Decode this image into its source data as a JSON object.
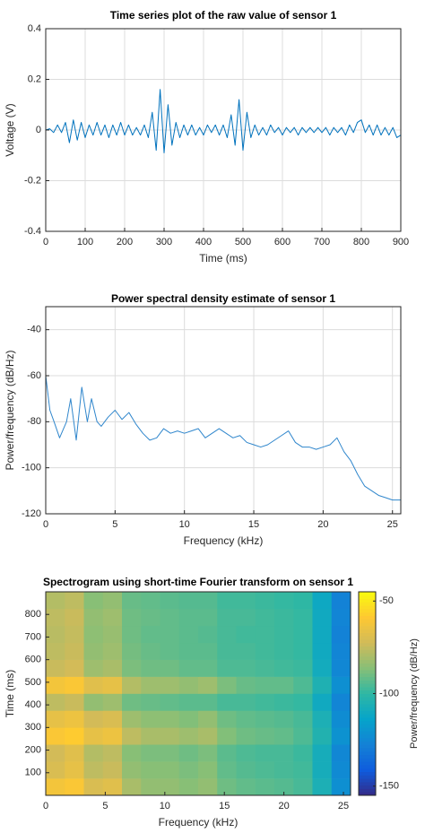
{
  "chart_data": [
    {
      "type": "line",
      "title": "Time series plot of the raw value of sensor 1",
      "xlabel": "Time (ms)",
      "ylabel": "Voltage (V)",
      "xlim": [
        0,
        900
      ],
      "xticks": [
        0,
        100,
        200,
        300,
        400,
        500,
        600,
        700,
        800,
        900
      ],
      "ylim": [
        -0.4,
        0.4
      ],
      "yticks": [
        -0.4,
        -0.2,
        0,
        0.2,
        0.4
      ],
      "grid": true,
      "color": "#0072bd",
      "x": [
        0,
        10,
        20,
        30,
        40,
        50,
        60,
        70,
        80,
        90,
        100,
        110,
        120,
        130,
        140,
        150,
        160,
        170,
        180,
        190,
        200,
        210,
        220,
        230,
        240,
        250,
        260,
        270,
        280,
        290,
        300,
        310,
        320,
        330,
        340,
        350,
        360,
        370,
        380,
        390,
        400,
        410,
        420,
        430,
        440,
        450,
        460,
        470,
        480,
        490,
        500,
        510,
        520,
        530,
        540,
        550,
        560,
        570,
        580,
        590,
        600,
        610,
        620,
        630,
        640,
        650,
        660,
        670,
        680,
        690,
        700,
        710,
        720,
        730,
        740,
        750,
        760,
        770,
        780,
        790,
        800,
        810,
        820,
        830,
        840,
        850,
        860,
        870,
        880,
        890,
        900
      ],
      "values": [
        0,
        0.005,
        -0.01,
        0.02,
        -0.01,
        0.03,
        -0.05,
        0.04,
        -0.04,
        0.03,
        -0.03,
        0.02,
        -0.02,
        0.03,
        -0.02,
        0.02,
        -0.03,
        0.02,
        -0.02,
        0.03,
        -0.02,
        0.02,
        -0.02,
        0.01,
        -0.02,
        0.02,
        -0.03,
        0.07,
        -0.08,
        0.16,
        -0.09,
        0.1,
        -0.06,
        0.03,
        -0.03,
        0.02,
        -0.02,
        0.02,
        -0.02,
        0.01,
        -0.02,
        0.02,
        -0.01,
        0.02,
        -0.02,
        0.02,
        -0.03,
        0.06,
        -0.06,
        0.12,
        -0.08,
        0.07,
        -0.03,
        0.02,
        -0.02,
        0.01,
        -0.02,
        0.02,
        -0.01,
        0.01,
        -0.02,
        0.01,
        -0.01,
        0.01,
        -0.02,
        0.01,
        -0.01,
        0.01,
        -0.01,
        0.01,
        -0.01,
        0.01,
        -0.02,
        0.01,
        -0.01,
        0.01,
        -0.02,
        0.02,
        -0.01,
        0.03,
        0.04,
        -0.01,
        0.02,
        -0.02,
        0.02,
        -0.02,
        0.01,
        -0.02,
        0.01,
        -0.03,
        -0.02
      ]
    },
    {
      "type": "line",
      "title": "Power spectral density estimate of sensor 1",
      "xlabel": "Frequency (kHz)",
      "ylabel": "Power/frequency (dB/Hz)",
      "xlim": [
        0,
        25.6
      ],
      "xticks": [
        0,
        5,
        10,
        15,
        20,
        25
      ],
      "ylim": [
        -120,
        -30
      ],
      "yticks": [
        -120,
        -100,
        -80,
        -60,
        -40
      ],
      "grid": true,
      "color": "#2f86cc",
      "x": [
        0,
        0.3,
        0.6,
        1,
        1.5,
        1.8,
        2.2,
        2.6,
        3,
        3.3,
        3.7,
        4,
        4.5,
        5,
        5.5,
        6,
        6.5,
        7,
        7.5,
        8,
        8.5,
        9,
        9.5,
        10,
        10.5,
        11,
        11.5,
        12,
        12.5,
        13,
        13.5,
        14,
        14.5,
        15,
        15.5,
        16,
        16.5,
        17,
        17.5,
        18,
        18.5,
        19,
        19.5,
        20,
        20.5,
        21,
        21.5,
        22,
        22.5,
        23,
        23.5,
        24,
        24.5,
        25,
        25.6
      ],
      "values": [
        -60,
        -75,
        -80,
        -87,
        -80,
        -70,
        -88,
        -65,
        -80,
        -70,
        -80,
        -82,
        -78,
        -75,
        -79,
        -76,
        -81,
        -85,
        -88,
        -87,
        -83,
        -85,
        -84,
        -85,
        -84,
        -83,
        -87,
        -85,
        -83,
        -85,
        -87,
        -86,
        -89,
        -90,
        -91,
        -90,
        -88,
        -86,
        -84,
        -89,
        -91,
        -91,
        -92,
        -91,
        -90,
        -87,
        -93,
        -97,
        -103,
        -108,
        -110,
        -112,
        -113,
        -114,
        -114
      ]
    },
    {
      "type": "heatmap",
      "title": "Spectrogram using short-time Fourier transform on sensor 1",
      "xlabel": "Frequency (kHz)",
      "ylabel": "Time (ms)",
      "xlim": [
        0,
        25.6
      ],
      "xticks": [
        0,
        5,
        10,
        15,
        20,
        25
      ],
      "ylim": [
        0,
        900
      ],
      "yticks": [
        100,
        200,
        300,
        400,
        500,
        600,
        700,
        800
      ],
      "clim": [
        -155,
        -45
      ],
      "cticks": [
        -150,
        -100,
        -50
      ],
      "clabel": "Power/frequency (dB/Hz)",
      "colormap": [
        "#352a87",
        "#0f5cdd",
        "#1481d6",
        "#06a4ca",
        "#2eb7a4",
        "#87bf77",
        "#d1bb59",
        "#fec832",
        "#f9fb0e"
      ],
      "x": [
        0.8,
        2.4,
        4.0,
        5.6,
        7.2,
        8.8,
        10.4,
        12.0,
        13.6,
        15.2,
        16.8,
        18.4,
        20.0,
        21.6,
        23.2,
        24.8
      ],
      "y": [
        37.5,
        112.5,
        187.5,
        262.5,
        337.5,
        412.5,
        487.5,
        562.5,
        637.5,
        712.5,
        787.5,
        862.5
      ],
      "z": [
        [
          -62,
          -60,
          -70,
          -68,
          -80,
          -84,
          -84,
          -86,
          -84,
          -90,
          -92,
          -93,
          -94,
          -96,
          -106,
          -122
        ],
        [
          -70,
          -66,
          -76,
          -74,
          -84,
          -86,
          -86,
          -88,
          -86,
          -92,
          -94,
          -95,
          -96,
          -97,
          -108,
          -124
        ],
        [
          -72,
          -68,
          -78,
          -76,
          -86,
          -88,
          -88,
          -90,
          -88,
          -93,
          -95,
          -96,
          -96,
          -98,
          -108,
          -125
        ],
        [
          -60,
          -58,
          -66,
          -64,
          -76,
          -80,
          -80,
          -82,
          -80,
          -87,
          -90,
          -91,
          -92,
          -95,
          -104,
          -121
        ],
        [
          -66,
          -64,
          -72,
          -70,
          -82,
          -85,
          -85,
          -87,
          -84,
          -90,
          -92,
          -93,
          -94,
          -96,
          -106,
          -123
        ],
        [
          -76,
          -74,
          -84,
          -82,
          -90,
          -91,
          -92,
          -93,
          -93,
          -96,
          -96,
          -97,
          -98,
          -99,
          -110,
          -126
        ],
        [
          -62,
          -60,
          -68,
          -66,
          -78,
          -82,
          -82,
          -84,
          -82,
          -88,
          -91,
          -92,
          -92,
          -95,
          -105,
          -122
        ],
        [
          -74,
          -72,
          -82,
          -80,
          -88,
          -90,
          -90,
          -92,
          -92,
          -95,
          -95,
          -96,
          -97,
          -98,
          -109,
          -125
        ],
        [
          -76,
          -74,
          -84,
          -82,
          -89,
          -91,
          -92,
          -93,
          -93,
          -96,
          -96,
          -97,
          -98,
          -99,
          -110,
          -126
        ],
        [
          -77,
          -75,
          -85,
          -83,
          -90,
          -92,
          -92,
          -93,
          -94,
          -96,
          -97,
          -97,
          -98,
          -99,
          -110,
          -127
        ],
        [
          -76,
          -74,
          -84,
          -82,
          -90,
          -91,
          -92,
          -93,
          -93,
          -96,
          -96,
          -97,
          -98,
          -99,
          -110,
          -126
        ],
        [
          -78,
          -76,
          -86,
          -84,
          -91,
          -92,
          -93,
          -94,
          -94,
          -97,
          -97,
          -98,
          -99,
          -100,
          -111,
          -127
        ]
      ]
    }
  ]
}
